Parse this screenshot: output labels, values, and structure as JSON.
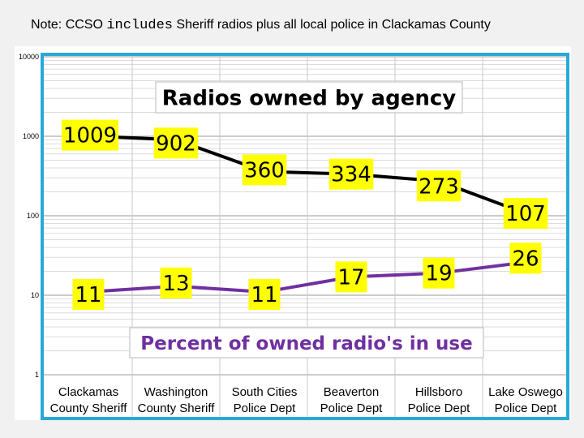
{
  "note": {
    "prefix": "Note: CCSO ",
    "mono": "includes",
    "suffix": " Sheriff radios plus all local police in Clackamas County"
  },
  "chart_data": {
    "type": "line",
    "scale": "log",
    "ylim": [
      1,
      10000
    ],
    "y_ticks": [
      "1",
      "10",
      "100",
      "1000",
      "10000"
    ],
    "categories": [
      [
        "Clackamas",
        "County Sheriff"
      ],
      [
        "Washington",
        "County Sheriff"
      ],
      [
        "South Cities",
        "Police Dept"
      ],
      [
        "Beaverton",
        "Police Dept"
      ],
      [
        "Hillsboro",
        "Police Dept"
      ],
      [
        "Lake Oswego",
        "Police Dept"
      ]
    ],
    "series": [
      {
        "name": "Radios owned by agency",
        "color": "#000000",
        "values": [
          1009,
          902,
          360,
          334,
          273,
          107
        ]
      },
      {
        "name": "Percent of owned radio's in use",
        "color": "#7030a0",
        "values": [
          11,
          13,
          11,
          17,
          19,
          26
        ]
      }
    ],
    "grid": true,
    "colors": {
      "frame": "#2aa9d9",
      "label_bg": "#ffff00",
      "title_purple": "#7030a0"
    }
  }
}
